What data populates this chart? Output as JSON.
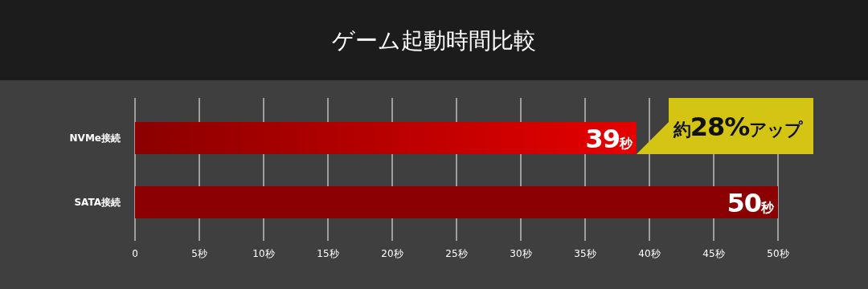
{
  "chart_data": {
    "type": "bar",
    "orientation": "horizontal",
    "title": "ゲーム起動時間比較",
    "categories": [
      "NVMe接続",
      "SATA接続"
    ],
    "values": [
      39,
      50
    ],
    "colors": [
      "#e60000",
      "#8b0000"
    ],
    "value_labels": [
      "39秒",
      "50秒"
    ],
    "xlim": [
      0,
      50
    ],
    "xticks": [
      0,
      {
        "value": 5,
        "label": "5秒"
      },
      {
        "value": 10,
        "label": "10秒"
      },
      {
        "value": 15,
        "label": "15秒"
      },
      {
        "value": 20,
        "label": "20秒"
      },
      {
        "value": 25,
        "label": "25秒"
      },
      {
        "value": 30,
        "label": "30秒"
      },
      {
        "value": 35,
        "label": "35秒"
      },
      {
        "value": 40,
        "label": "40秒"
      },
      {
        "value": 45,
        "label": "45秒"
      },
      {
        "value": 50,
        "label": "50秒"
      }
    ],
    "grid": "x",
    "annotations": [
      {
        "text": "約28%アップ",
        "x": 39,
        "y": "NVMe接続"
      }
    ]
  }
}
